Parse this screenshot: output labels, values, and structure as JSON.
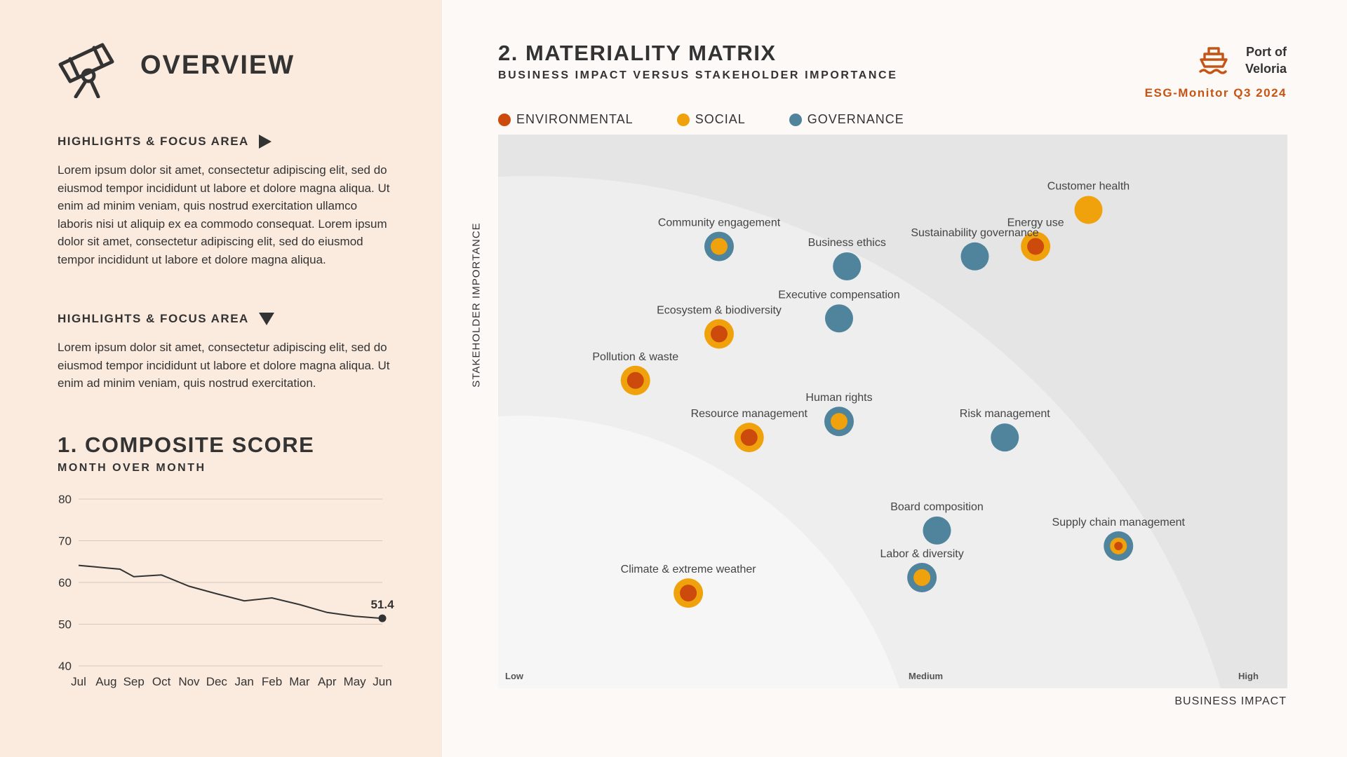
{
  "overview": {
    "title": "OVERVIEW",
    "sections": [
      {
        "title": "HIGHLIGHTS & FOCUS AREA",
        "body": "Lorem ipsum dolor sit amet, consectetur adipiscing elit, sed do eiusmod tempor incididunt ut labore et dolore magna aliqua. Ut enim ad minim veniam, quis nostrud exercitation ullamco laboris nisi ut aliquip ex ea commodo consequat. Lorem ipsum dolor sit amet, consectetur adipiscing elit, sed do eiusmod tempor incididunt ut labore et dolore magna aliqua."
      },
      {
        "title": "HIGHLIGHTS & FOCUS AREA",
        "body": "Lorem ipsum dolor sit amet, consectetur adipiscing elit, sed do eiusmod tempor incididunt ut labore et dolore magna aliqua. Ut enim ad minim veniam, quis nostrud exercitation."
      }
    ]
  },
  "composite": {
    "title": "1. COMPOSITE SCORE",
    "subtitle": "MONTH OVER MONTH"
  },
  "matrix": {
    "title": "2. MATERIALITY MATRIX",
    "subtitle": "BUSINESS IMPACT VERSUS STAKEHOLDER IMPORTANCE"
  },
  "brand": {
    "name_line1": "Port of",
    "name_line2": "Veloria",
    "report": "ESG-Monitor Q3 2024"
  },
  "legend": [
    {
      "label": "ENVIRONMENTAL",
      "color": "#cc4a0c"
    },
    {
      "label": "SOCIAL",
      "color": "#f0a20d"
    },
    {
      "label": "GOVERNANCE",
      "color": "#4f849c"
    }
  ],
  "colors": {
    "environmental": "#cc4a0c",
    "social": "#f0a20d",
    "governance": "#4f849c",
    "accent": "#c65414"
  },
  "chart_data": [
    {
      "type": "line",
      "title": "1. COMPOSITE SCORE",
      "subtitle": "MONTH OVER MONTH",
      "categories": [
        "Jul",
        "Aug",
        "Sep",
        "Oct",
        "Nov",
        "Dec",
        "Jan",
        "Feb",
        "Mar",
        "Apr",
        "May",
        "Jun"
      ],
      "points": [
        {
          "x": 0,
          "y": 64.1
        },
        {
          "x": 0.5,
          "y": 63.8
        },
        {
          "x": 1,
          "y": 63.5
        },
        {
          "x": 1.5,
          "y": 63.2
        },
        {
          "x": 2,
          "y": 61.4
        },
        {
          "x": 2.5,
          "y": 61.6
        },
        {
          "x": 3,
          "y": 61.8
        },
        {
          "x": 4,
          "y": 59.1
        },
        {
          "x": 5,
          "y": 57.3
        },
        {
          "x": 6,
          "y": 55.6
        },
        {
          "x": 7,
          "y": 56.3
        },
        {
          "x": 8,
          "y": 54.7
        },
        {
          "x": 9,
          "y": 52.8
        },
        {
          "x": 10,
          "y": 51.9
        },
        {
          "x": 11,
          "y": 51.4
        }
      ],
      "ylim": [
        40,
        80
      ],
      "yticks": [
        40,
        50,
        60,
        70,
        80
      ],
      "end_label": "51.4",
      "grid": true
    },
    {
      "type": "scatter",
      "title": "2. MATERIALITY MATRIX",
      "subtitle": "BUSINESS IMPACT VERSUS STAKEHOLDER IMPORTANCE",
      "xlabel": "BUSINESS IMPACT",
      "ylabel": "STAKEHOLDER IMPORTANCE",
      "xlim": [
        0,
        100
      ],
      "ylim": [
        0,
        100
      ],
      "zone_labels": [
        "Low",
        "Medium",
        "High"
      ],
      "points": [
        {
          "label": "Customer health",
          "x": 74.8,
          "y": 86.4,
          "rings": [
            "social"
          ]
        },
        {
          "label": "Energy use",
          "x": 68.1,
          "y": 79.8,
          "rings": [
            "social",
            "environmental"
          ]
        },
        {
          "label": "Sustainability governance",
          "x": 60.4,
          "y": 78.0,
          "rings": [
            "governance"
          ]
        },
        {
          "label": "Community engagement",
          "x": 28.0,
          "y": 79.8,
          "rings": [
            "governance",
            "social"
          ]
        },
        {
          "label": "Business ethics",
          "x": 44.2,
          "y": 76.2,
          "rings": [
            "governance"
          ]
        },
        {
          "label": "Executive compensation",
          "x": 43.2,
          "y": 66.8,
          "rings": [
            "governance"
          ]
        },
        {
          "label": "Ecosystem & biodiversity",
          "x": 28.0,
          "y": 64.0,
          "rings": [
            "social",
            "environmental"
          ]
        },
        {
          "label": "Pollution & waste",
          "x": 17.4,
          "y": 55.6,
          "rings": [
            "social",
            "environmental"
          ]
        },
        {
          "label": "Human rights",
          "x": 43.2,
          "y": 48.2,
          "rings": [
            "governance",
            "social"
          ]
        },
        {
          "label": "Resource management",
          "x": 31.8,
          "y": 45.3,
          "rings": [
            "social",
            "environmental"
          ]
        },
        {
          "label": "Risk management",
          "x": 64.2,
          "y": 45.3,
          "rings": [
            "governance"
          ]
        },
        {
          "label": "Board composition",
          "x": 55.6,
          "y": 28.5,
          "rings": [
            "governance"
          ]
        },
        {
          "label": "Supply chain management",
          "x": 78.6,
          "y": 25.7,
          "rings": [
            "governance",
            "social",
            "environmental"
          ]
        },
        {
          "label": "Labor & diversity",
          "x": 53.7,
          "y": 20.0,
          "rings": [
            "governance",
            "social"
          ]
        },
        {
          "label": "Climate & extreme weather",
          "x": 24.1,
          "y": 17.2,
          "rings": [
            "social",
            "environmental"
          ]
        }
      ]
    }
  ]
}
